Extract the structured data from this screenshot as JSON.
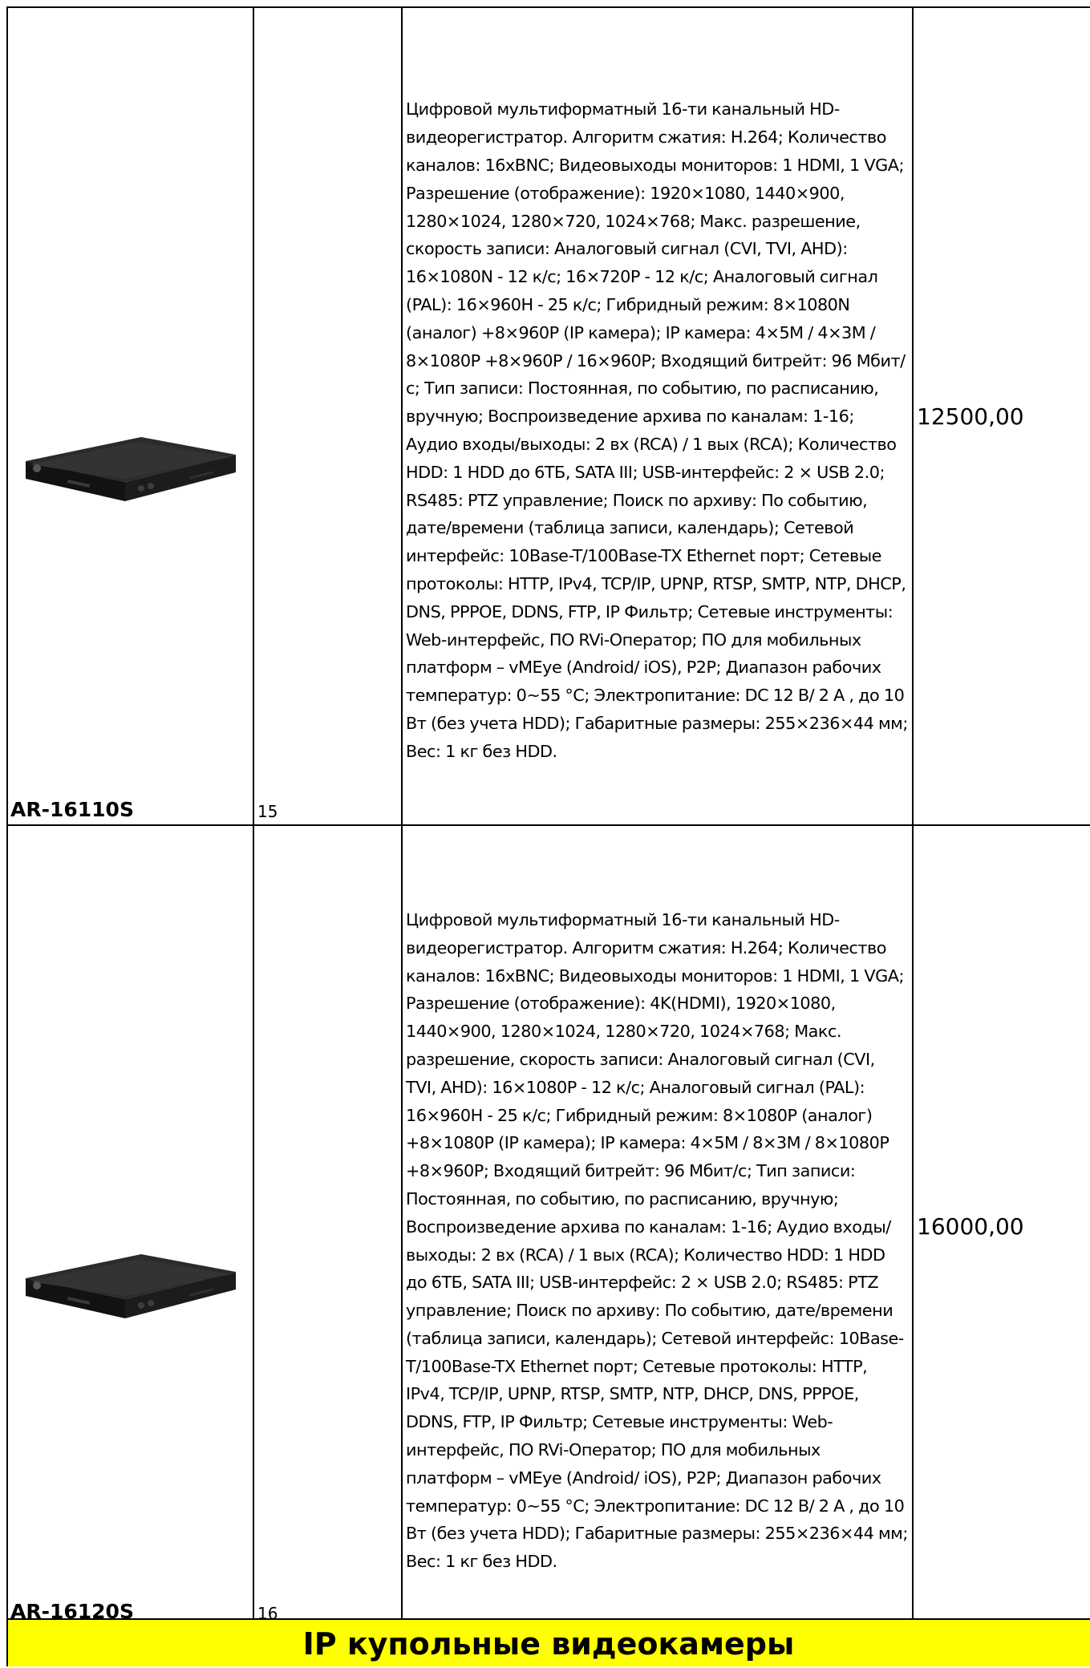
{
  "rows": [
    {
      "model": "AR-16110S",
      "number": "15",
      "image": "dvr-device-image",
      "description": "Цифровой мультиформатный 16-ти канальный HD-видеорегистратор. Алгоритм сжатия: H.264; Количество каналов: 16xBNC; Видеовыходы мониторов: 1 HDMI, 1 VGA; Разрешение (отображение): 1920×1080, 1440×900, 1280×1024, 1280×720, 1024×768; Макс. разрешение, скорость записи: Аналоговый сигнал (CVI, TVI, AHD): 16×1080N - 12 к/с; 16×720P - 12 к/с; Аналоговый сигнал (PAL): 16×960H - 25 к/с; Гибридный режим: 8×1080N (аналог) +8×960P (IP камера); IP камера: 4×5M / 4×3M / 8×1080P +8×960P / 16×960P; Входящий битрейт: 96 Мбит/с; Тип записи: Постоянная, по событию, по расписанию, вручную; Воспроизведение архива по каналам: 1-16; Аудио входы/выходы: 2 вх (RCA) / 1 вых (RCA); Количество HDD: 1 HDD до 6ТБ, SATA III; USB-интерфейс: 2 × USB 2.0; RS485: PTZ управление; Поиск по архиву: По событию, дате/времени (таблица записи, календарь); Сетевой интерфейс: 10Base-T/100Base-TX Ethernet порт; Сетевые протоколы: HTTP, IPv4, TCP/IP, UPNP, RTSP, SMTP, NTP, DHCP, DNS, PPPOE, DDNS, FTP, IP Фильтр; Сетевые инструменты: Web-интерфейс, ПО RVi-Оператор; ПО для мобильных платформ – vMEye (Android/ iOS), P2P; Диапазон рабочих температур: 0~55 °C; Электропитание: DC 12 В/ 2 А , до 10 Вт (без учета HDD); Габаритные размеры: 255×236×44 мм; Вес: 1 кг без HDD.",
      "price": "12500,00"
    },
    {
      "model": "AR-16120S",
      "number": "16",
      "image": "dvr-device-image",
      "description": "Цифровой мультиформатный 16-ти канальный HD-видеорегистратор. Алгоритм сжатия: H.264; Количество каналов: 16xBNC; Видеовыходы мониторов: 1 HDMI, 1 VGA; Разрешение (отображение): 4K(HDMI), 1920×1080, 1440×900, 1280×1024, 1280×720, 1024×768; Макс. разрешение, скорость записи: Аналоговый сигнал (CVI, TVI, AHD): 16×1080P - 12 к/с; Аналоговый сигнал (PAL): 16×960H - 25 к/с; Гибридный режим: 8×1080P (аналог) +8×1080P (IP камера); IP камера: 4×5M / 8×3M / 8×1080P +8×960P; Входящий битрейт: 96 Мбит/с; Тип записи: Постоянная, по событию, по расписанию, вручную; Воспроизведение архива по каналам: 1-16; Аудио входы/выходы: 2 вх (RCA) / 1 вых (RCA); Количество HDD: 1 HDD до 6ТБ, SATA III; USB-интерфейс: 2 × USB 2.0; RS485: PTZ управление; Поиск по архиву: По событию, дате/времени (таблица записи, календарь); Сетевой интерфейс: 10Base-T/100Base-TX Ethernet порт; Сетевые протоколы: HTTP, IPv4, TCP/IP, UPNP, RTSP, SMTP, NTP, DHCP, DNS, PPPOE, DDNS, FTP, IP Фильтр; Сетевые инструменты: Web-интерфейс, ПО RVi-Оператор; ПО для мобильных платформ – vMEye (Android/ iOS), P2P; Диапазон рабочих температур: 0~55 °C; Электропитание: DC 12 В/ 2 А , до 10 Вт (без учета HDD); Габаритные размеры: 255×236×44 мм; Вес: 1 кг без HDD.",
      "price": "16000,00"
    }
  ],
  "section_banner": "IP купольные видеокамеры",
  "colors": {
    "banner_background": "#ffff00",
    "border": "#000000",
    "device_body": "#1a1a1a"
  }
}
